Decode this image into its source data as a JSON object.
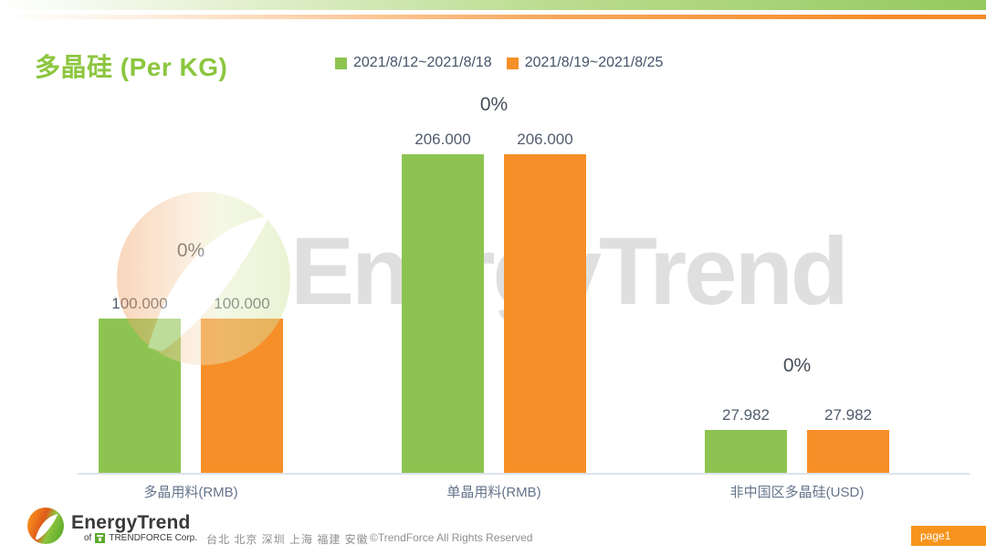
{
  "header": {
    "title": "多晶硅 (Per KG)"
  },
  "legend": [
    {
      "label": "2021/8/12~2021/8/18",
      "color": "#8dc451"
    },
    {
      "label": "2021/8/19~2021/8/25",
      "color": "#f68f28"
    }
  ],
  "chart_data": {
    "type": "bar",
    "title": "多晶硅 (Per KG)",
    "categories": [
      "多晶用料(RMB)",
      "单晶用料(RMB)",
      "非中国区多晶硅(USD)"
    ],
    "series": [
      {
        "name": "2021/8/12~2021/8/18",
        "color": "#8dc451",
        "values": [
          100.0,
          206.0,
          27.982
        ]
      },
      {
        "name": "2021/8/19~2021/8/25",
        "color": "#f68f28",
        "values": [
          100.0,
          206.0,
          27.982
        ]
      }
    ],
    "value_labels": [
      [
        "100.000",
        "206.000",
        "27.982"
      ],
      [
        "100.000",
        "206.000",
        "27.982"
      ]
    ],
    "change_labels": [
      "0%",
      "0%",
      "0%"
    ],
    "ylim": [
      0,
      206
    ],
    "grid": false,
    "legend_position": "top",
    "axis_visible": "baseline-only"
  },
  "watermark": {
    "text": "EnergyTrend"
  },
  "footer": {
    "logo_name": "EnergyTrend",
    "logo_sub_prefix": "of",
    "logo_sub": "TRENDFORCE Corp.",
    "cities": "台北 北京 深圳 上海 福建 安徽",
    "copyright": "©TrendForce All Rights Reserved",
    "page_label": "page1"
  },
  "colors": {
    "title_green": "#8cc63f",
    "bar_green": "#8dc451",
    "bar_orange": "#f68f28",
    "accent_orange": "#f7941d",
    "label_text": "#515c6e",
    "axis_line": "#dde3ec"
  }
}
